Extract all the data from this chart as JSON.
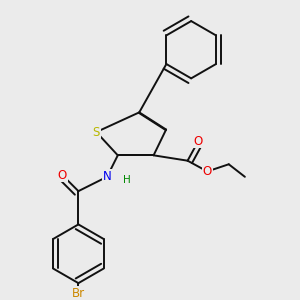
{
  "background_color": "#ebebeb",
  "figsize": [
    3.0,
    3.0
  ],
  "dpi": 100,
  "atom_colors": {
    "S": "#b8b800",
    "N": "#0000ee",
    "O": "#ee0000",
    "Br": "#cc8800",
    "C": "#000000",
    "H": "#008800"
  },
  "bond_color": "#111111",
  "bond_width": 1.4,
  "font_size_atoms": 8.5,
  "font_size_h": 7.5
}
